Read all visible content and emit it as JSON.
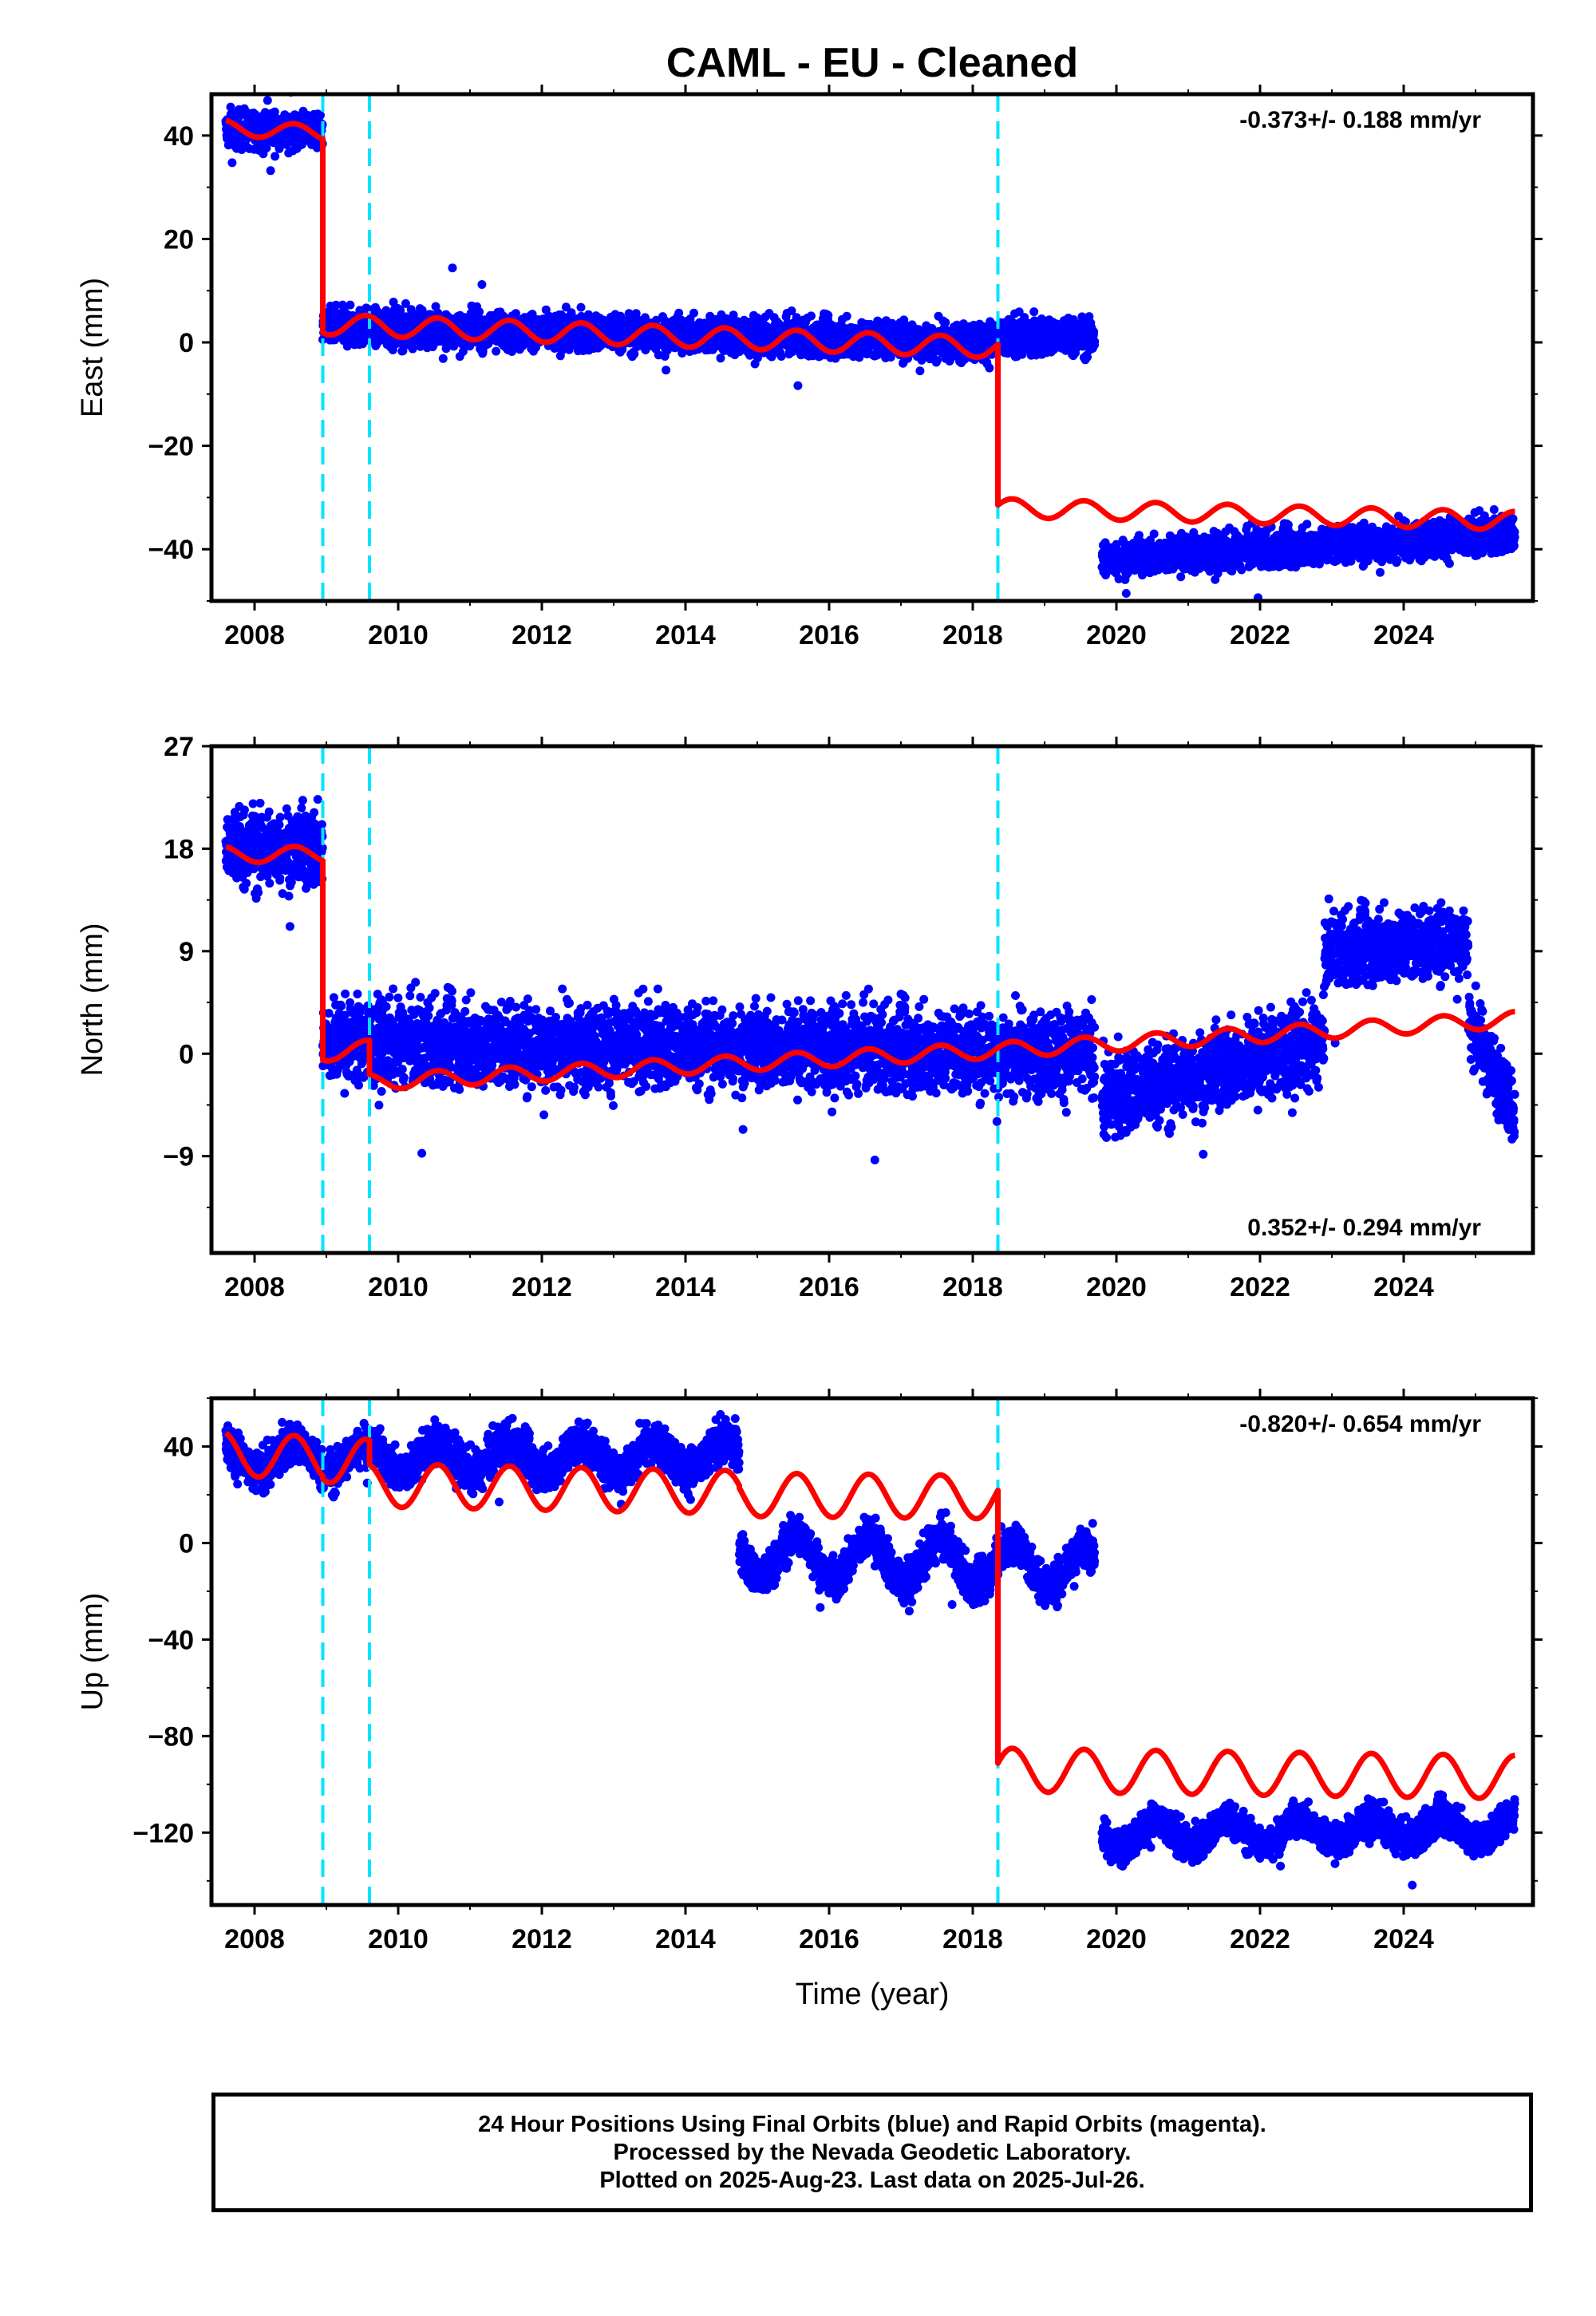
{
  "title": "CAML  - EU - Cleaned",
  "colors": {
    "final_orbits": "#0000ff",
    "model": "#ff0000",
    "steps": "#00e5ff"
  },
  "chart_data": [
    {
      "type": "scatter",
      "component": "east",
      "ylabel": "East (mm)",
      "xlim": [
        2007.4,
        2025.8
      ],
      "ylim": [
        -50,
        48
      ],
      "yticks": [
        -40,
        -20,
        0,
        20,
        40
      ],
      "xticks": [
        2008,
        2010,
        2012,
        2014,
        2016,
        2018,
        2020,
        2022,
        2024
      ],
      "rate_label": "-0.373+/- 0.188 mm/yr",
      "rate_position": "top-right",
      "step_epochs": [
        2008.95,
        2009.6,
        2018.35
      ],
      "series": [
        {
          "name": "Final Orbits (blue)",
          "kind": "points",
          "segments": [
            {
              "x": [
                2007.6,
                2008.95
              ],
              "y_start": 41,
              "y_end": 41,
              "noise": 2.5
            },
            {
              "x": [
                2008.95,
                2018.35
              ],
              "y_start": 3,
              "y_end": 0,
              "noise": 2.5
            },
            {
              "x": [
                2018.35,
                2019.7
              ],
              "y_start": 1,
              "y_end": 1,
              "noise": 2.5
            },
            {
              "x": [
                2019.8,
                2025.55
              ],
              "y_start": -42,
              "y_end": -37,
              "noise": 2.5
            }
          ]
        },
        {
          "name": "Model",
          "kind": "line",
          "segments": [
            {
              "x": [
                2007.6,
                2008.95
              ],
              "y_start": 41.5,
              "y_end": 40.5,
              "amplitude": 1.5
            },
            {
              "x": [
                2008.95,
                2018.35
              ],
              "y_start": 3.5,
              "y_end": -1,
              "amplitude": 2
            },
            {
              "x": [
                2018.35,
                2025.55
              ],
              "y_start": -32,
              "y_end": -34.5,
              "amplitude": 1.8
            }
          ]
        }
      ]
    },
    {
      "type": "scatter",
      "component": "north",
      "ylabel": "North (mm)",
      "xlim": [
        2007.4,
        2025.8
      ],
      "ylim": [
        -17.5,
        27
      ],
      "yticks": [
        -9,
        0,
        9,
        18,
        27
      ],
      "xticks": [
        2008,
        2010,
        2012,
        2014,
        2016,
        2018,
        2020,
        2022,
        2024
      ],
      "rate_label": "0.352+/- 0.294 mm/yr",
      "rate_position": "bottom-right",
      "step_epochs": [
        2008.95,
        2009.6,
        2018.35
      ],
      "series": [
        {
          "name": "Final Orbits (blue)",
          "kind": "points",
          "segments": [
            {
              "x": [
                2007.6,
                2008.95
              ],
              "y_start": 18,
              "y_end": 18,
              "noise": 2.5
            },
            {
              "x": [
                2008.95,
                2019.7
              ],
              "y_start": 1,
              "y_end": 0,
              "noise": 2.6
            },
            {
              "x": [
                2019.8,
                2022.9
              ],
              "y_start": -4,
              "y_end": 1,
              "noise": 2.6
            },
            {
              "x": [
                2022.9,
                2024.9
              ],
              "y_start": 9,
              "y_end": 10,
              "noise": 2.2
            },
            {
              "x": [
                2024.9,
                2025.55
              ],
              "y_start": 3,
              "y_end": -5,
              "noise": 2.2
            }
          ]
        },
        {
          "name": "Model",
          "kind": "line",
          "segments": [
            {
              "x": [
                2007.6,
                2008.95
              ],
              "y_start": 17.5,
              "y_end": 17.5,
              "amplitude": 0.7
            },
            {
              "x": [
                2008.95,
                2009.6
              ],
              "y_start": 0,
              "y_end": 0.5,
              "amplitude": 0.7
            },
            {
              "x": [
                2009.6,
                2018.35
              ],
              "y_start": -2.5,
              "y_end": 0.3,
              "amplitude": 0.7
            },
            {
              "x": [
                2018.35,
                2025.55
              ],
              "y_start": 0.3,
              "y_end": 3,
              "amplitude": 0.7
            }
          ]
        }
      ]
    },
    {
      "type": "scatter",
      "component": "up",
      "ylabel": "Up (mm)",
      "xlim": [
        2007.4,
        2025.8
      ],
      "ylim": [
        -150,
        60
      ],
      "yticks": [
        -120,
        -80,
        -40,
        0,
        40
      ],
      "xticks": [
        2008,
        2010,
        2012,
        2014,
        2016,
        2018,
        2020,
        2022,
        2024
      ],
      "rate_label": "-0.820+/- 0.654 mm/yr",
      "rate_position": "top-right",
      "xlabel": "Time (year)",
      "step_epochs": [
        2008.95,
        2009.6,
        2018.35
      ],
      "series": [
        {
          "name": "Final Orbits (blue)",
          "kind": "points",
          "segments": [
            {
              "x": [
                2007.6,
                2014.75
              ],
              "y_start": 35,
              "y_end": 36,
              "noise": 6,
              "amplitude": 6
            },
            {
              "x": [
                2014.75,
                2019.7
              ],
              "y_start": -5,
              "y_end": -10,
              "noise": 6,
              "amplitude": 9
            },
            {
              "x": [
                2019.8,
                2025.55
              ],
              "y_start": -121,
              "y_end": -118,
              "noise": 5,
              "amplitude": 5
            }
          ]
        },
        {
          "name": "Model",
          "kind": "line",
          "segments": [
            {
              "x": [
                2007.6,
                2008.95
              ],
              "y_start": 37,
              "y_end": 35,
              "amplitude": 9
            },
            {
              "x": [
                2008.95,
                2009.6
              ],
              "y_start": 34,
              "y_end": 34,
              "amplitude": 9
            },
            {
              "x": [
                2009.6,
                2014.75
              ],
              "y_start": 24,
              "y_end": 21,
              "amplitude": 9
            },
            {
              "x": [
                2014.75,
                2018.35
              ],
              "y_start": 20,
              "y_end": 19,
              "amplitude": 9
            },
            {
              "x": [
                2018.35,
                2025.55
              ],
              "y_start": -94,
              "y_end": -97,
              "amplitude": 9
            }
          ]
        }
      ]
    }
  ],
  "footer": {
    "line1": "24 Hour Positions Using Final Orbits (blue) and Rapid Orbits (magenta).",
    "line2": "Processed by the Nevada Geodetic Laboratory.",
    "line3": "Plotted on 2025-Aug-23. Last data on 2025-Jul-26."
  }
}
